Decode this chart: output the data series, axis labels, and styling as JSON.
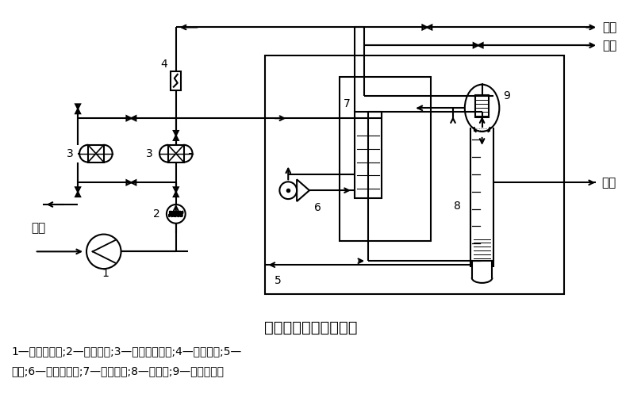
{
  "title": "深冷分离制氮工艺流程",
  "caption_line1": "1—空气压缩机;2—预冷机组;3—分子筛吸附器;4—电加热器;5—",
  "caption_line2": "冷箱;6—透平膨胀机;7—主换热器;8—精馏塔;9—冷凝蒸发器",
  "label_kongqi": "空气",
  "label_fangkong": "放空",
  "label_danqi": "氮气",
  "label_yedan": "液氮",
  "line_color": "#000000",
  "bg_color": "#ffffff",
  "fig_width": 7.84,
  "fig_height": 5.16,
  "dpi": 100
}
